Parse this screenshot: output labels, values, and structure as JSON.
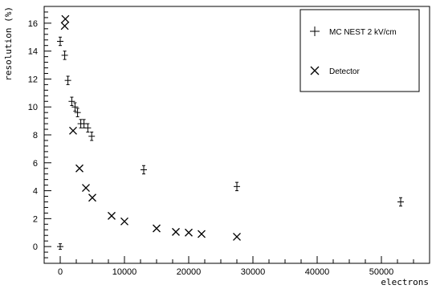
{
  "chart_data": {
    "type": "scatter",
    "title": "",
    "xlabel": "electrons",
    "ylabel": "resolution (%)",
    "xlim": [
      -2500,
      57500
    ],
    "ylim": [
      -1.2,
      17.2
    ],
    "x_ticks": [
      0,
      10000,
      20000,
      30000,
      40000,
      50000
    ],
    "y_ticks": [
      0,
      2,
      4,
      6,
      8,
      10,
      12,
      14,
      16
    ],
    "grid": false,
    "legend": {
      "placement": "top-right"
    },
    "series": [
      {
        "name": "MC NEST 2 kV/cm",
        "marker": "plus-errorbar",
        "points": [
          {
            "x": 0,
            "y": 0.0,
            "err": 0.2
          },
          {
            "x": 0,
            "y": 14.7,
            "err": 0.3
          },
          {
            "x": 700,
            "y": 13.7,
            "err": 0.3
          },
          {
            "x": 1200,
            "y": 11.9,
            "err": 0.3
          },
          {
            "x": 1800,
            "y": 10.4,
            "err": 0.3
          },
          {
            "x": 2300,
            "y": 10.0,
            "err": 0.3
          },
          {
            "x": 2700,
            "y": 9.6,
            "err": 0.3
          },
          {
            "x": 3200,
            "y": 8.8,
            "err": 0.3
          },
          {
            "x": 3700,
            "y": 8.8,
            "err": 0.3
          },
          {
            "x": 4300,
            "y": 8.5,
            "err": 0.3
          },
          {
            "x": 4900,
            "y": 7.9,
            "err": 0.3
          },
          {
            "x": 13000,
            "y": 5.5,
            "err": 0.3
          },
          {
            "x": 27500,
            "y": 4.3,
            "err": 0.3
          },
          {
            "x": 53000,
            "y": 3.2,
            "err": 0.3
          }
        ]
      },
      {
        "name": "Detector",
        "marker": "x",
        "points": [
          {
            "x": 800,
            "y": 16.3
          },
          {
            "x": 700,
            "y": 15.8
          },
          {
            "x": 2000,
            "y": 8.3
          },
          {
            "x": 3000,
            "y": 5.6
          },
          {
            "x": 4000,
            "y": 4.2
          },
          {
            "x": 5000,
            "y": 3.5
          },
          {
            "x": 8000,
            "y": 2.2
          },
          {
            "x": 10000,
            "y": 1.8
          },
          {
            "x": 15000,
            "y": 1.3
          },
          {
            "x": 18000,
            "y": 1.05
          },
          {
            "x": 20000,
            "y": 1.0
          },
          {
            "x": 22000,
            "y": 0.9
          },
          {
            "x": 27500,
            "y": 0.7
          }
        ]
      }
    ]
  }
}
